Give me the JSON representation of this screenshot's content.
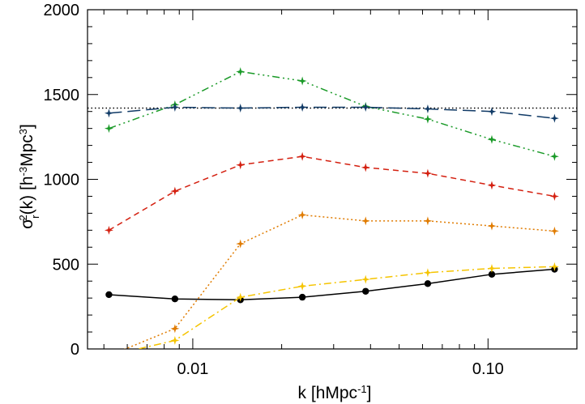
{
  "chart_data": {
    "type": "line",
    "x_scale": "log",
    "xlim": [
      0.0044,
      0.2
    ],
    "ylim": [
      0,
      2000
    ],
    "grid": false,
    "x_ticks": [
      {
        "value": 0.01,
        "label": "0.01"
      },
      {
        "value": 0.1,
        "label": "0.10"
      }
    ],
    "y_ticks": [
      {
        "value": 0,
        "label": "0"
      },
      {
        "value": 500,
        "label": "500"
      },
      {
        "value": 1000,
        "label": "1000"
      },
      {
        "value": 1500,
        "label": "1500"
      },
      {
        "value": 2000,
        "label": "2000"
      }
    ],
    "xlabel": {
      "base": "k [hMpc",
      "sup": "-1",
      "end": "]"
    },
    "ylabel": {
      "sigma": "σ",
      "sub_r": "r",
      "sup_2": "2",
      "mid": "(k) [h",
      "sup_m3": "-3",
      "mpc": "Mpc",
      "sup_3": "3",
      "end": "]"
    },
    "x": [
      0.0052,
      0.0087,
      0.0145,
      0.0235,
      0.0385,
      0.0625,
      0.103,
      0.168
    ],
    "reference_line": {
      "y": 1420,
      "style": "dotted",
      "color": "#000000"
    },
    "series": [
      {
        "color": "#000000",
        "dash": "",
        "marker": "circle",
        "values": [
          320,
          295,
          290,
          305,
          340,
          385,
          440,
          470
        ]
      },
      {
        "color": "#f5c400",
        "dash": "9 4 2 4",
        "marker": "star",
        "values": [
          -40,
          50,
          305,
          370,
          410,
          450,
          475,
          485
        ]
      },
      {
        "color": "#e07b00",
        "dash": "2 3",
        "marker": "star",
        "values": [
          -40,
          120,
          620,
          790,
          755,
          755,
          725,
          695
        ]
      },
      {
        "color": "#d42010",
        "dash": "7 5",
        "marker": "star",
        "values": [
          700,
          930,
          1085,
          1135,
          1070,
          1035,
          965,
          900
        ]
      },
      {
        "color": "#1a9a28",
        "dash": "9 4 2 4 2 4 2 4",
        "marker": "star",
        "values": [
          1300,
          1440,
          1635,
          1580,
          1430,
          1355,
          1235,
          1135
        ]
      },
      {
        "color": "#103a66",
        "dash": "16 7",
        "marker": "star",
        "values": [
          1390,
          1425,
          1420,
          1425,
          1425,
          1415,
          1400,
          1360
        ]
      }
    ]
  }
}
